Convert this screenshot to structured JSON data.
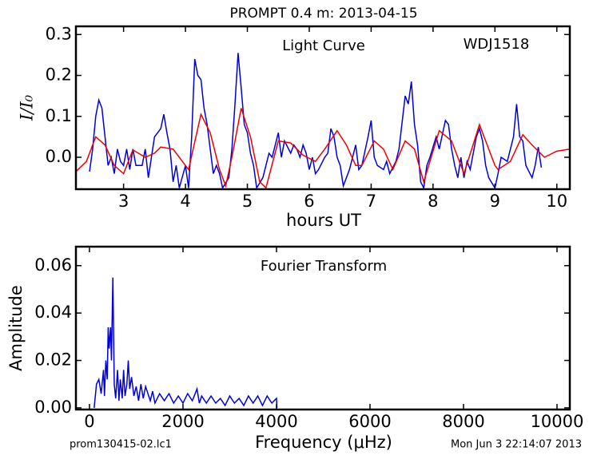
{
  "chart_data": [
    {
      "type": "line",
      "title": "PROMPT 0.4 m:  2013-04-15",
      "xlabel": "hours UT",
      "ylabel": "I/I₀",
      "annotations": [
        "Light Curve",
        "WDJ1518"
      ],
      "xlim": [
        2.23,
        10.21
      ],
      "ylim": [
        -0.078,
        0.32
      ],
      "xticks": [
        3,
        4,
        5,
        6,
        7,
        8,
        9,
        10
      ],
      "yticks": [
        {
          "value": 0,
          "label": "0.0"
        },
        0.1,
        0.2,
        0.3
      ],
      "series": [
        {
          "name": "data",
          "color": "#0000dd",
          "x": [
            2.45,
            2.5,
            2.55,
            2.6,
            2.65,
            2.7,
            2.75,
            2.8,
            2.85,
            2.9,
            2.95,
            3.0,
            3.05,
            3.1,
            3.15,
            3.2,
            3.3,
            3.35,
            3.4,
            3.45,
            3.5,
            3.6,
            3.65,
            3.7,
            3.75,
            3.8,
            3.85,
            3.9,
            4.0,
            4.05,
            4.1,
            4.15,
            4.2,
            4.25,
            4.3,
            4.35,
            4.4,
            4.45,
            4.5,
            4.55,
            4.6,
            4.7,
            4.75,
            4.8,
            4.85,
            4.9,
            4.95,
            5.0,
            5.05,
            5.1,
            5.15,
            5.25,
            5.3,
            5.35,
            5.4,
            5.5,
            5.55,
            5.6,
            5.7,
            5.75,
            5.8,
            5.85,
            5.9,
            5.95,
            6.0,
            6.05,
            6.1,
            6.15,
            6.25,
            6.3,
            6.35,
            6.4,
            6.45,
            6.5,
            6.55,
            6.65,
            6.75,
            6.8,
            6.85,
            6.95,
            7.0,
            7.05,
            7.1,
            7.2,
            7.25,
            7.3,
            7.4,
            7.45,
            7.55,
            7.6,
            7.65,
            7.7,
            7.75,
            7.8,
            7.85,
            7.9,
            7.95,
            8.05,
            8.1,
            8.2,
            8.25,
            8.3,
            8.35,
            8.4,
            8.45,
            8.5,
            8.55,
            8.6,
            8.65,
            8.7,
            8.75,
            8.8,
            8.85,
            8.9,
            9.0,
            9.05,
            9.1,
            9.2,
            9.3,
            9.35,
            9.4,
            9.45,
            9.5,
            9.6,
            9.65,
            9.7,
            9.75
          ],
          "values": [
            -0.035,
            0.02,
            0.1,
            0.14,
            0.12,
            0.05,
            -0.02,
            0.0,
            -0.04,
            0.02,
            -0.01,
            -0.02,
            0.02,
            -0.03,
            0.02,
            -0.02,
            -0.02,
            0.02,
            -0.05,
            0.0,
            0.05,
            0.07,
            0.105,
            0.06,
            0.02,
            -0.06,
            -0.02,
            -0.075,
            -0.02,
            -0.075,
            0.05,
            0.24,
            0.2,
            0.19,
            0.12,
            0.08,
            0.02,
            -0.04,
            -0.02,
            -0.04,
            -0.075,
            -0.05,
            0.02,
            0.13,
            0.255,
            0.17,
            0.08,
            0.06,
            0.01,
            -0.02,
            -0.075,
            -0.05,
            -0.02,
            0.01,
            0.0,
            0.06,
            0.0,
            0.04,
            0.01,
            0.03,
            0.02,
            0.0,
            0.03,
            0.01,
            -0.03,
            0.0,
            -0.04,
            -0.03,
            0.0,
            0.01,
            0.07,
            0.05,
            0.0,
            -0.02,
            -0.07,
            -0.03,
            0.03,
            -0.03,
            -0.02,
            0.05,
            0.09,
            0.0,
            -0.02,
            -0.03,
            -0.01,
            -0.04,
            -0.01,
            0.02,
            0.15,
            0.13,
            0.185,
            0.08,
            0.03,
            -0.06,
            -0.075,
            -0.02,
            0.0,
            0.05,
            0.02,
            0.09,
            0.08,
            0.02,
            -0.02,
            -0.05,
            0.0,
            -0.05,
            -0.01,
            -0.03,
            0.01,
            0.05,
            0.07,
            0.04,
            -0.02,
            -0.05,
            -0.075,
            -0.04,
            0.0,
            -0.01,
            0.05,
            0.13,
            0.05,
            0.04,
            -0.02,
            -0.05,
            -0.02,
            0.025,
            -0.025
          ]
        },
        {
          "name": "model",
          "color": "#ee0000",
          "x": [
            2.23,
            2.4,
            2.55,
            2.7,
            2.85,
            3.0,
            3.15,
            3.35,
            3.5,
            3.6,
            3.8,
            4.0,
            4.05,
            4.25,
            4.4,
            4.55,
            4.65,
            4.75,
            4.9,
            5.05,
            5.2,
            5.3,
            5.5,
            5.7,
            5.9,
            6.1,
            6.25,
            6.45,
            6.6,
            6.75,
            6.85,
            7.05,
            7.2,
            7.35,
            7.55,
            7.7,
            7.85,
            8.1,
            8.3,
            8.5,
            8.75,
            9.0,
            9.05,
            9.25,
            9.45,
            9.6,
            9.8,
            10.0,
            10.21
          ],
          "values": [
            -0.035,
            -0.01,
            0.05,
            0.03,
            -0.02,
            -0.04,
            0.018,
            0.0,
            0.01,
            0.025,
            0.02,
            -0.02,
            -0.03,
            0.105,
            0.06,
            -0.03,
            -0.07,
            0.0,
            0.12,
            0.05,
            -0.06,
            -0.075,
            0.04,
            0.035,
            0.005,
            -0.01,
            0.02,
            0.065,
            0.03,
            -0.02,
            -0.02,
            0.04,
            0.02,
            -0.03,
            0.04,
            0.02,
            -0.06,
            0.065,
            0.04,
            -0.04,
            0.08,
            -0.02,
            -0.03,
            -0.01,
            0.055,
            0.03,
            0.0,
            0.015,
            0.02
          ]
        }
      ]
    },
    {
      "type": "line",
      "xlabel": "Frequency (μHz)",
      "ylabel": "Amplitude",
      "annotations": [
        "Fourier Transform"
      ],
      "xlim": [
        -290,
        10274
      ],
      "ylim": [
        -0.0007,
        0.068
      ],
      "xticks": [
        0,
        2000,
        4000,
        6000,
        8000,
        10000
      ],
      "yticks": [
        {
          "value": 0,
          "label": "0.00"
        },
        0.02,
        0.04,
        0.06
      ],
      "series": [
        {
          "name": "amplitude",
          "color": "#0000dd",
          "x": [
            100,
            150,
            200,
            250,
            300,
            320,
            350,
            380,
            400,
            420,
            450,
            470,
            500,
            530,
            560,
            600,
            630,
            660,
            700,
            730,
            760,
            800,
            830,
            860,
            900,
            950,
            1000,
            1050,
            1100,
            1150,
            1200,
            1300,
            1350,
            1400,
            1500,
            1600,
            1700,
            1800,
            1900,
            2000,
            2100,
            2200,
            2300,
            2350,
            2400,
            2500,
            2600,
            2700,
            2800,
            2900,
            3000,
            3100,
            3200,
            3300,
            3400,
            3500,
            3600,
            3700,
            3800,
            3900,
            4000,
            4010
          ],
          "values": [
            0.0,
            0.01,
            0.012,
            0.006,
            0.016,
            0.005,
            0.02,
            0.012,
            0.034,
            0.025,
            0.034,
            0.02,
            0.055,
            0.01,
            0.004,
            0.016,
            0.003,
            0.012,
            0.004,
            0.016,
            0.005,
            0.01,
            0.02,
            0.008,
            0.013,
            0.005,
            0.009,
            0.003,
            0.01,
            0.004,
            0.009,
            0.003,
            0.007,
            0.002,
            0.006,
            0.003,
            0.006,
            0.002,
            0.005,
            0.002,
            0.006,
            0.003,
            0.008,
            0.002,
            0.005,
            0.002,
            0.005,
            0.002,
            0.004,
            0.001,
            0.005,
            0.002,
            0.004,
            0.001,
            0.005,
            0.002,
            0.005,
            0.001,
            0.005,
            0.002,
            0.004,
            0.0
          ]
        }
      ]
    }
  ],
  "footer": {
    "left": "prom130415-02.lc1",
    "right": "Mon Jun  3 22:14:07 2013"
  }
}
